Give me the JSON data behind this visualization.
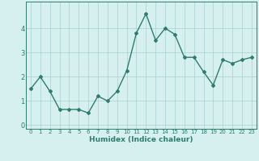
{
  "x": [
    0,
    1,
    2,
    3,
    4,
    5,
    6,
    7,
    8,
    9,
    10,
    11,
    12,
    13,
    14,
    15,
    16,
    17,
    18,
    19,
    20,
    21,
    22,
    23
  ],
  "y": [
    1.5,
    2.0,
    1.4,
    0.65,
    0.65,
    0.65,
    0.5,
    1.2,
    1.0,
    1.4,
    2.25,
    3.8,
    4.6,
    3.5,
    4.0,
    3.75,
    2.8,
    2.8,
    2.2,
    1.65,
    2.7,
    2.55,
    2.7,
    2.8
  ],
  "line_color": "#2e7d6e",
  "marker": "D",
  "marker_size": 2.0,
  "line_width": 1.0,
  "bg_color": "#d6f0ef",
  "grid_color": "#a8cece",
  "xlabel": "Humidex (Indice chaleur)",
  "xlabel_fontsize": 6.5,
  "xlabel_fontweight": "bold",
  "ylabel_ticks": [
    0,
    1,
    2,
    3,
    4
  ],
  "xlim": [
    -0.5,
    23.5
  ],
  "ylim": [
    -0.15,
    5.1
  ],
  "tick_fontsize": 5.0,
  "ytick_fontsize": 6.0
}
